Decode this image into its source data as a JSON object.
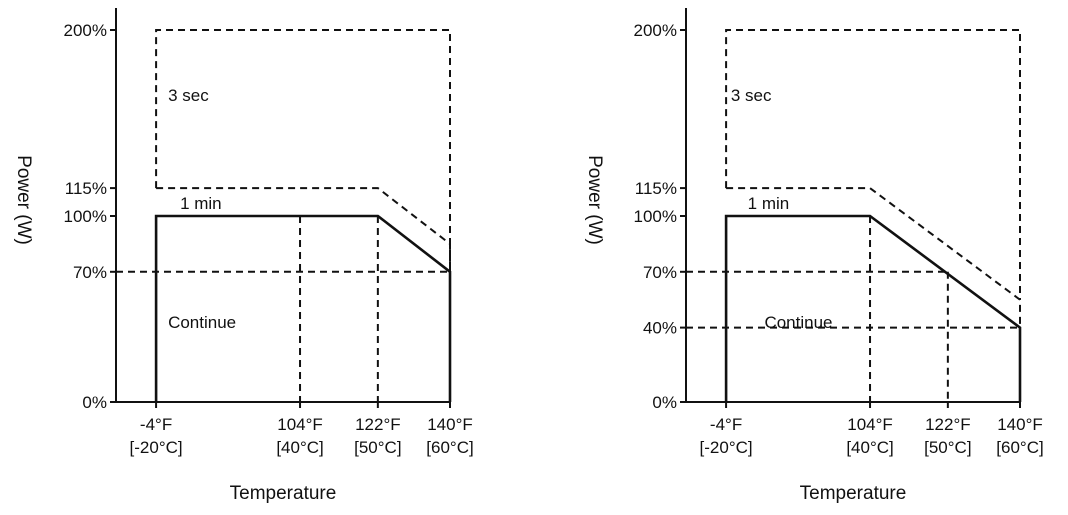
{
  "chart_data": [
    {
      "type": "line",
      "title": "",
      "xlabel": "Temperature",
      "ylabel": "Power (W)",
      "x_ticks": [
        {
          "value": -20,
          "lines": [
            "-4°F",
            "[-20°C]"
          ]
        },
        {
          "value": 40,
          "lines": [
            "104°F",
            "[40°C]"
          ]
        },
        {
          "value": 50,
          "lines": [
            "122°F",
            "[50°C]"
          ]
        },
        {
          "value": 60,
          "lines": [
            "140°F",
            "[60°C]"
          ]
        }
      ],
      "y_ticks": [
        {
          "value": 0,
          "label": "0%"
        },
        {
          "value": 70,
          "label": "70%"
        },
        {
          "value": 100,
          "label": "100%"
        },
        {
          "value": 115,
          "label": "115%"
        },
        {
          "value": 200,
          "label": "200%"
        }
      ],
      "xlim": [
        -20,
        60
      ],
      "ylim": [
        0,
        200
      ],
      "series": [
        {
          "role": "continuous",
          "style": "solid",
          "x": [
            -20,
            -20,
            50,
            60,
            60
          ],
          "y": [
            0,
            100,
            100,
            70,
            0
          ]
        },
        {
          "role": "one-minute",
          "style": "dashed",
          "x": [
            -20,
            50,
            60,
            60
          ],
          "y": [
            115,
            115,
            85,
            70
          ]
        },
        {
          "role": "three-second",
          "style": "dashed",
          "x": [
            -20,
            -20,
            60,
            60
          ],
          "y": [
            115,
            200,
            200,
            70
          ]
        }
      ],
      "guides": {
        "vertical": [
          {
            "x": 40,
            "y_top": 100
          },
          {
            "x": 50,
            "y_top": 100
          }
        ],
        "horizontal": [
          {
            "y": 70,
            "x_end": 60
          }
        ]
      },
      "annotations": [
        {
          "text": "3 sec",
          "x": -15,
          "y": 165
        },
        {
          "text": "1 min",
          "x": -10,
          "y": 107
        },
        {
          "text": "Continue",
          "x": -15,
          "y": 43
        }
      ]
    },
    {
      "type": "line",
      "title": "",
      "xlabel": "Temperature",
      "ylabel": "Power (W)",
      "x_ticks": [
        {
          "value": -20,
          "lines": [
            "-4°F",
            "[-20°C]"
          ]
        },
        {
          "value": 40,
          "lines": [
            "104°F",
            "[40°C]"
          ]
        },
        {
          "value": 50,
          "lines": [
            "122°F",
            "[50°C]"
          ]
        },
        {
          "value": 60,
          "lines": [
            "140°F",
            "[60°C]"
          ]
        }
      ],
      "y_ticks": [
        {
          "value": 0,
          "label": "0%"
        },
        {
          "value": 40,
          "label": "40%"
        },
        {
          "value": 70,
          "label": "70%"
        },
        {
          "value": 100,
          "label": "100%"
        },
        {
          "value": 115,
          "label": "115%"
        },
        {
          "value": 200,
          "label": "200%"
        }
      ],
      "xlim": [
        -20,
        60
      ],
      "ylim": [
        0,
        200
      ],
      "series": [
        {
          "role": "continuous",
          "style": "solid",
          "x": [
            -20,
            -20,
            40,
            60,
            60
          ],
          "y": [
            0,
            100,
            100,
            40,
            0
          ]
        },
        {
          "role": "one-minute",
          "style": "dashed",
          "x": [
            -20,
            40,
            60,
            60
          ],
          "y": [
            115,
            115,
            55,
            40
          ]
        },
        {
          "role": "three-second",
          "style": "dashed",
          "x": [
            -20,
            -20,
            60,
            60
          ],
          "y": [
            115,
            200,
            200,
            55
          ]
        }
      ],
      "guides": {
        "vertical": [
          {
            "x": 40,
            "y_top": 100
          },
          {
            "x": 50,
            "y_top": 70
          }
        ],
        "horizontal": [
          {
            "y": 70,
            "x_end": 50
          },
          {
            "y": 40,
            "x_end": 60
          }
        ]
      },
      "annotations": [
        {
          "text": "3 sec",
          "x": -18,
          "y": 165
        },
        {
          "text": "1 min",
          "x": -11,
          "y": 107
        },
        {
          "text": "Continue",
          "x": -4,
          "y": 43
        }
      ]
    }
  ]
}
